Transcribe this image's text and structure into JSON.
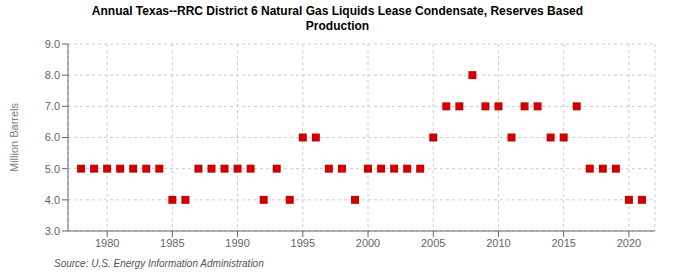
{
  "chart_data": {
    "type": "scatter",
    "title": "Annual Texas--RRC District 6 Natural Gas Liquids Lease Condensate, Reserves Based\nProduction",
    "y_label": "Million Barrels",
    "annotations": [
      "Source: U.S. Energy Information Administration"
    ],
    "x": [
      1978,
      1979,
      1980,
      1981,
      1982,
      1983,
      1984,
      1985,
      1986,
      1987,
      1988,
      1989,
      1990,
      1991,
      1992,
      1993,
      1994,
      1995,
      1996,
      1997,
      1998,
      1999,
      2000,
      2001,
      2002,
      2003,
      2004,
      2005,
      2006,
      2007,
      2008,
      2009,
      2010,
      2011,
      2012,
      2013,
      2014,
      2015,
      2016,
      2017,
      2018,
      2019,
      2020,
      2021
    ],
    "values": [
      5.0,
      5.0,
      5.0,
      5.0,
      5.0,
      5.0,
      5.0,
      4.0,
      4.0,
      5.0,
      5.0,
      5.0,
      5.0,
      5.0,
      4.0,
      5.0,
      4.0,
      6.0,
      6.0,
      5.0,
      5.0,
      4.0,
      5.0,
      5.0,
      5.0,
      5.0,
      5.0,
      6.0,
      7.0,
      7.0,
      8.0,
      7.0,
      7.0,
      6.0,
      7.0,
      7.0,
      6.0,
      6.0,
      7.0,
      5.0,
      5.0,
      5.0,
      4.0,
      4.0
    ],
    "color": "#cc0000",
    "marker": "square",
    "xlim": [
      1977,
      2022
    ],
    "xticks": [
      1980,
      1985,
      1990,
      1995,
      2000,
      2005,
      2010,
      2015,
      2020
    ],
    "ylim": [
      3.0,
      9.0
    ],
    "yticks": [
      {
        "value": 3.0,
        "label": "3.0"
      },
      {
        "value": 4.0,
        "label": "4.0"
      },
      {
        "value": 5.0,
        "label": "5.0"
      },
      {
        "value": 6.0,
        "label": "6.0"
      },
      {
        "value": 7.0,
        "label": "7.0"
      },
      {
        "value": 8.0,
        "label": "8.0"
      },
      {
        "value": 9.0,
        "label": "9.0"
      }
    ],
    "grid": true
  }
}
